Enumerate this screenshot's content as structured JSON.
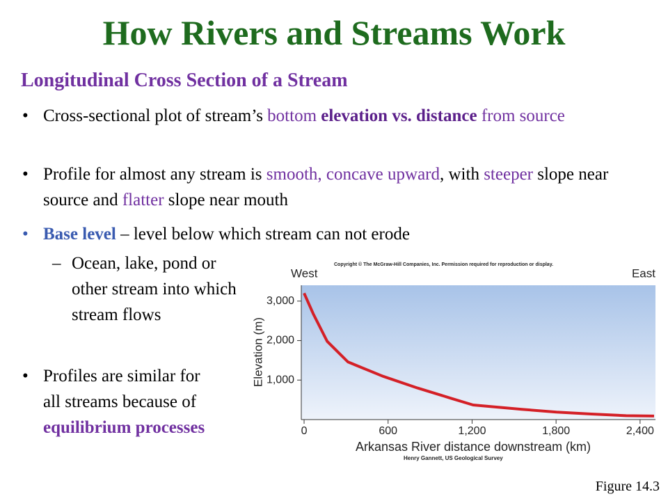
{
  "title": "How Rivers and Streams Work",
  "subtitle": "Longitudinal Cross Section of a Stream",
  "bullets": [
    {
      "marker": "•",
      "level": 1,
      "runs": [
        {
          "text": "Cross-sectional plot of stream’s "
        },
        {
          "text": "bottom ",
          "color": "#7030a0"
        },
        {
          "text": "elevation vs. distance",
          "color": "#5b1f8a",
          "bold": true
        },
        {
          "text": " from source",
          "color": "#7030a0"
        }
      ]
    },
    {
      "marker": "•",
      "level": 1,
      "runs": [
        {
          "text": "Profile for almost any stream is "
        },
        {
          "text": "smooth, concave upward",
          "color": "#7030a0"
        },
        {
          "text": ", with "
        },
        {
          "text": "steeper",
          "color": "#7030a0"
        },
        {
          "text": " slope near source and "
        },
        {
          "text": "flatter",
          "color": "#7030a0"
        },
        {
          "text": " slope near mouth"
        }
      ]
    },
    {
      "marker": "•",
      "level": 1,
      "color": "#3a5bb0",
      "runs": [
        {
          "text": "Base level",
          "color": "#3a5bb0",
          "bold": true
        },
        {
          "text": " – level below which stream can not erode"
        }
      ]
    },
    {
      "marker": "–",
      "level": 2,
      "runs": [
        {
          "text": "Ocean, lake, pond or other stream into which stream flows"
        }
      ]
    },
    {
      "marker": "•",
      "level": 1,
      "runs": [
        {
          "text": "Profiles are similar for all streams because of "
        },
        {
          "text": "equilibrium processes",
          "color": "#7030a0",
          "bold": true
        }
      ]
    }
  ],
  "caption": "Figure 14.3",
  "chart_data": {
    "type": "line",
    "copyright": "Copyright © The McGraw-Hill Companies, Inc. Permission required for reproduction or display.",
    "left_label": "West",
    "right_label": "East",
    "xlabel": "Arkansas River distance downstream (km)",
    "ylabel": "Elevation (m)",
    "source": "Henry Gannett, US Geological Survey",
    "x": [
      0,
      65,
      165,
      313,
      561,
      810,
      1058,
      1207,
      1555,
      1803,
      2052,
      2300,
      2500
    ],
    "series": [
      {
        "name": "Elevation",
        "color": "#d42027",
        "values": [
          3200,
          2680,
          1980,
          1460,
          1100,
          800,
          530,
          370,
          260,
          190,
          140,
          100,
          90
        ]
      }
    ],
    "xlim": [
      -20,
      2510
    ],
    "ylim": [
      0,
      3400
    ],
    "xticks": [
      0,
      600,
      {
        "value": 1200,
        "label": "1,200"
      },
      {
        "value": 1800,
        "label": "1,800"
      },
      {
        "value": 2400,
        "label": "2,400"
      }
    ],
    "yticks": [
      {
        "value": 1000,
        "label": "1,000"
      },
      {
        "value": 2000,
        "label": "2,000"
      },
      {
        "value": 3000,
        "label": "3,000"
      }
    ]
  }
}
